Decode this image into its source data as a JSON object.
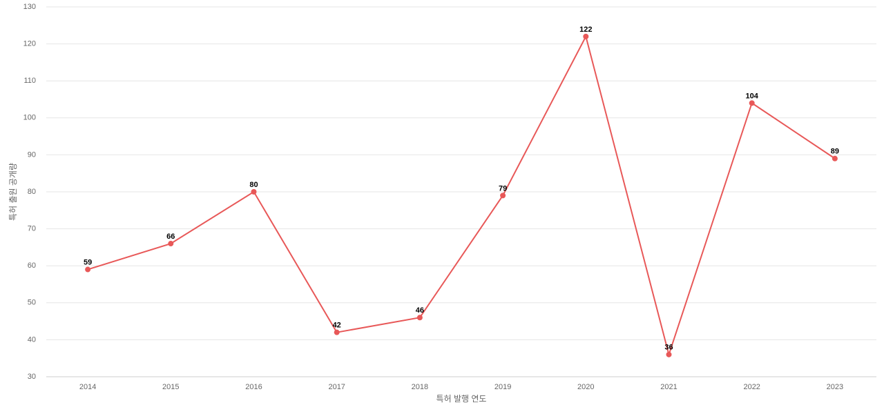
{
  "chart_data": {
    "type": "line",
    "x_label": "특허 발행 연도",
    "y_label": "특허 출원 공개량",
    "x": [
      2014,
      2015,
      2016,
      2017,
      2018,
      2019,
      2020,
      2021,
      2022,
      2023
    ],
    "xlim": [
      2013.5,
      2023.5
    ],
    "xticks": [
      2014,
      2015,
      2016,
      2017,
      2018,
      2019,
      2020,
      2021,
      2022,
      2023
    ],
    "series": [
      {
        "name": "특허 출원 공개량",
        "color": "#e85858",
        "values": [
          59,
          66,
          80,
          42,
          46,
          79,
          122,
          36,
          104,
          89
        ]
      }
    ],
    "ylim": [
      30,
      130
    ],
    "yticks": [
      30,
      40,
      50,
      60,
      70,
      80,
      90,
      100,
      110,
      120,
      130
    ],
    "grid": true
  }
}
